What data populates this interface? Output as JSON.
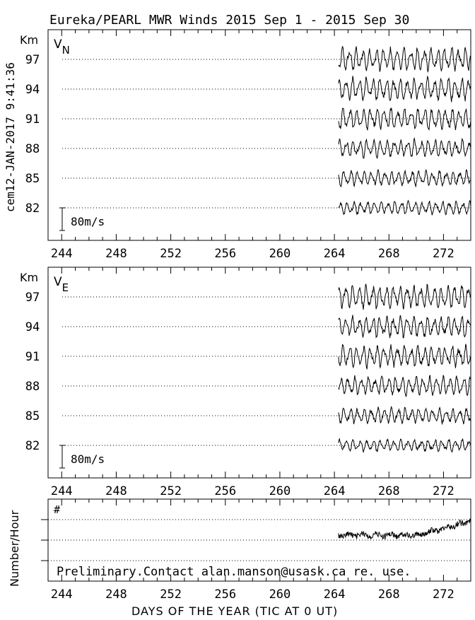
{
  "title": "Eureka/PEARL MWR Winds 2015 Sep  1 - 2015 Sep 30",
  "timestamp": "cem12-JAN-2017  9:41:36",
  "footer_note": "Preliminary.Contact alan.manson@usask.ca re. use.",
  "x_axis_title": "DAYS OF THE YEAR (TIC AT 0 UT)",
  "chart_data": [
    {
      "type": "line",
      "panel": "VN",
      "panel_label_main": "V",
      "panel_label_sub": "N",
      "y_unit_label": "Km",
      "altitudes_km": [
        97,
        94,
        91,
        88,
        85,
        82
      ],
      "scale_bar_label": "80m/s",
      "scale_bar_ms": 80,
      "xlim": [
        243,
        274
      ],
      "xticks_labeled": [
        244,
        248,
        252,
        256,
        260,
        264,
        268,
        272
      ],
      "grid": "dotted horizontal at each altitude",
      "data_start_day": 264.3,
      "data_end_day": 274,
      "series_amplitude_ms": [
        40,
        38,
        36,
        30,
        26,
        22
      ]
    },
    {
      "type": "line",
      "panel": "VE",
      "panel_label_main": "V",
      "panel_label_sub": "E",
      "y_unit_label": "Km",
      "altitudes_km": [
        97,
        94,
        91,
        88,
        85,
        82
      ],
      "scale_bar_label": "80m/s",
      "scale_bar_ms": 80,
      "xlim": [
        243,
        274
      ],
      "xticks_labeled": [
        244,
        248,
        252,
        256,
        260,
        264,
        268,
        272
      ],
      "grid": "dotted horizontal at each altitude",
      "data_start_day": 264.3,
      "data_end_day": 274,
      "series_amplitude_ms": [
        40,
        36,
        36,
        32,
        26,
        20
      ]
    },
    {
      "type": "line",
      "panel": "count",
      "panel_label_main": "#",
      "y_label": "Number/Hour",
      "xlim": [
        243,
        274
      ],
      "xticks_labeled": [
        244,
        248,
        252,
        256,
        260,
        264,
        268,
        272
      ],
      "grid": "dotted horizontal lines",
      "data_start_day": 264.3,
      "data_end_day": 274
    }
  ]
}
